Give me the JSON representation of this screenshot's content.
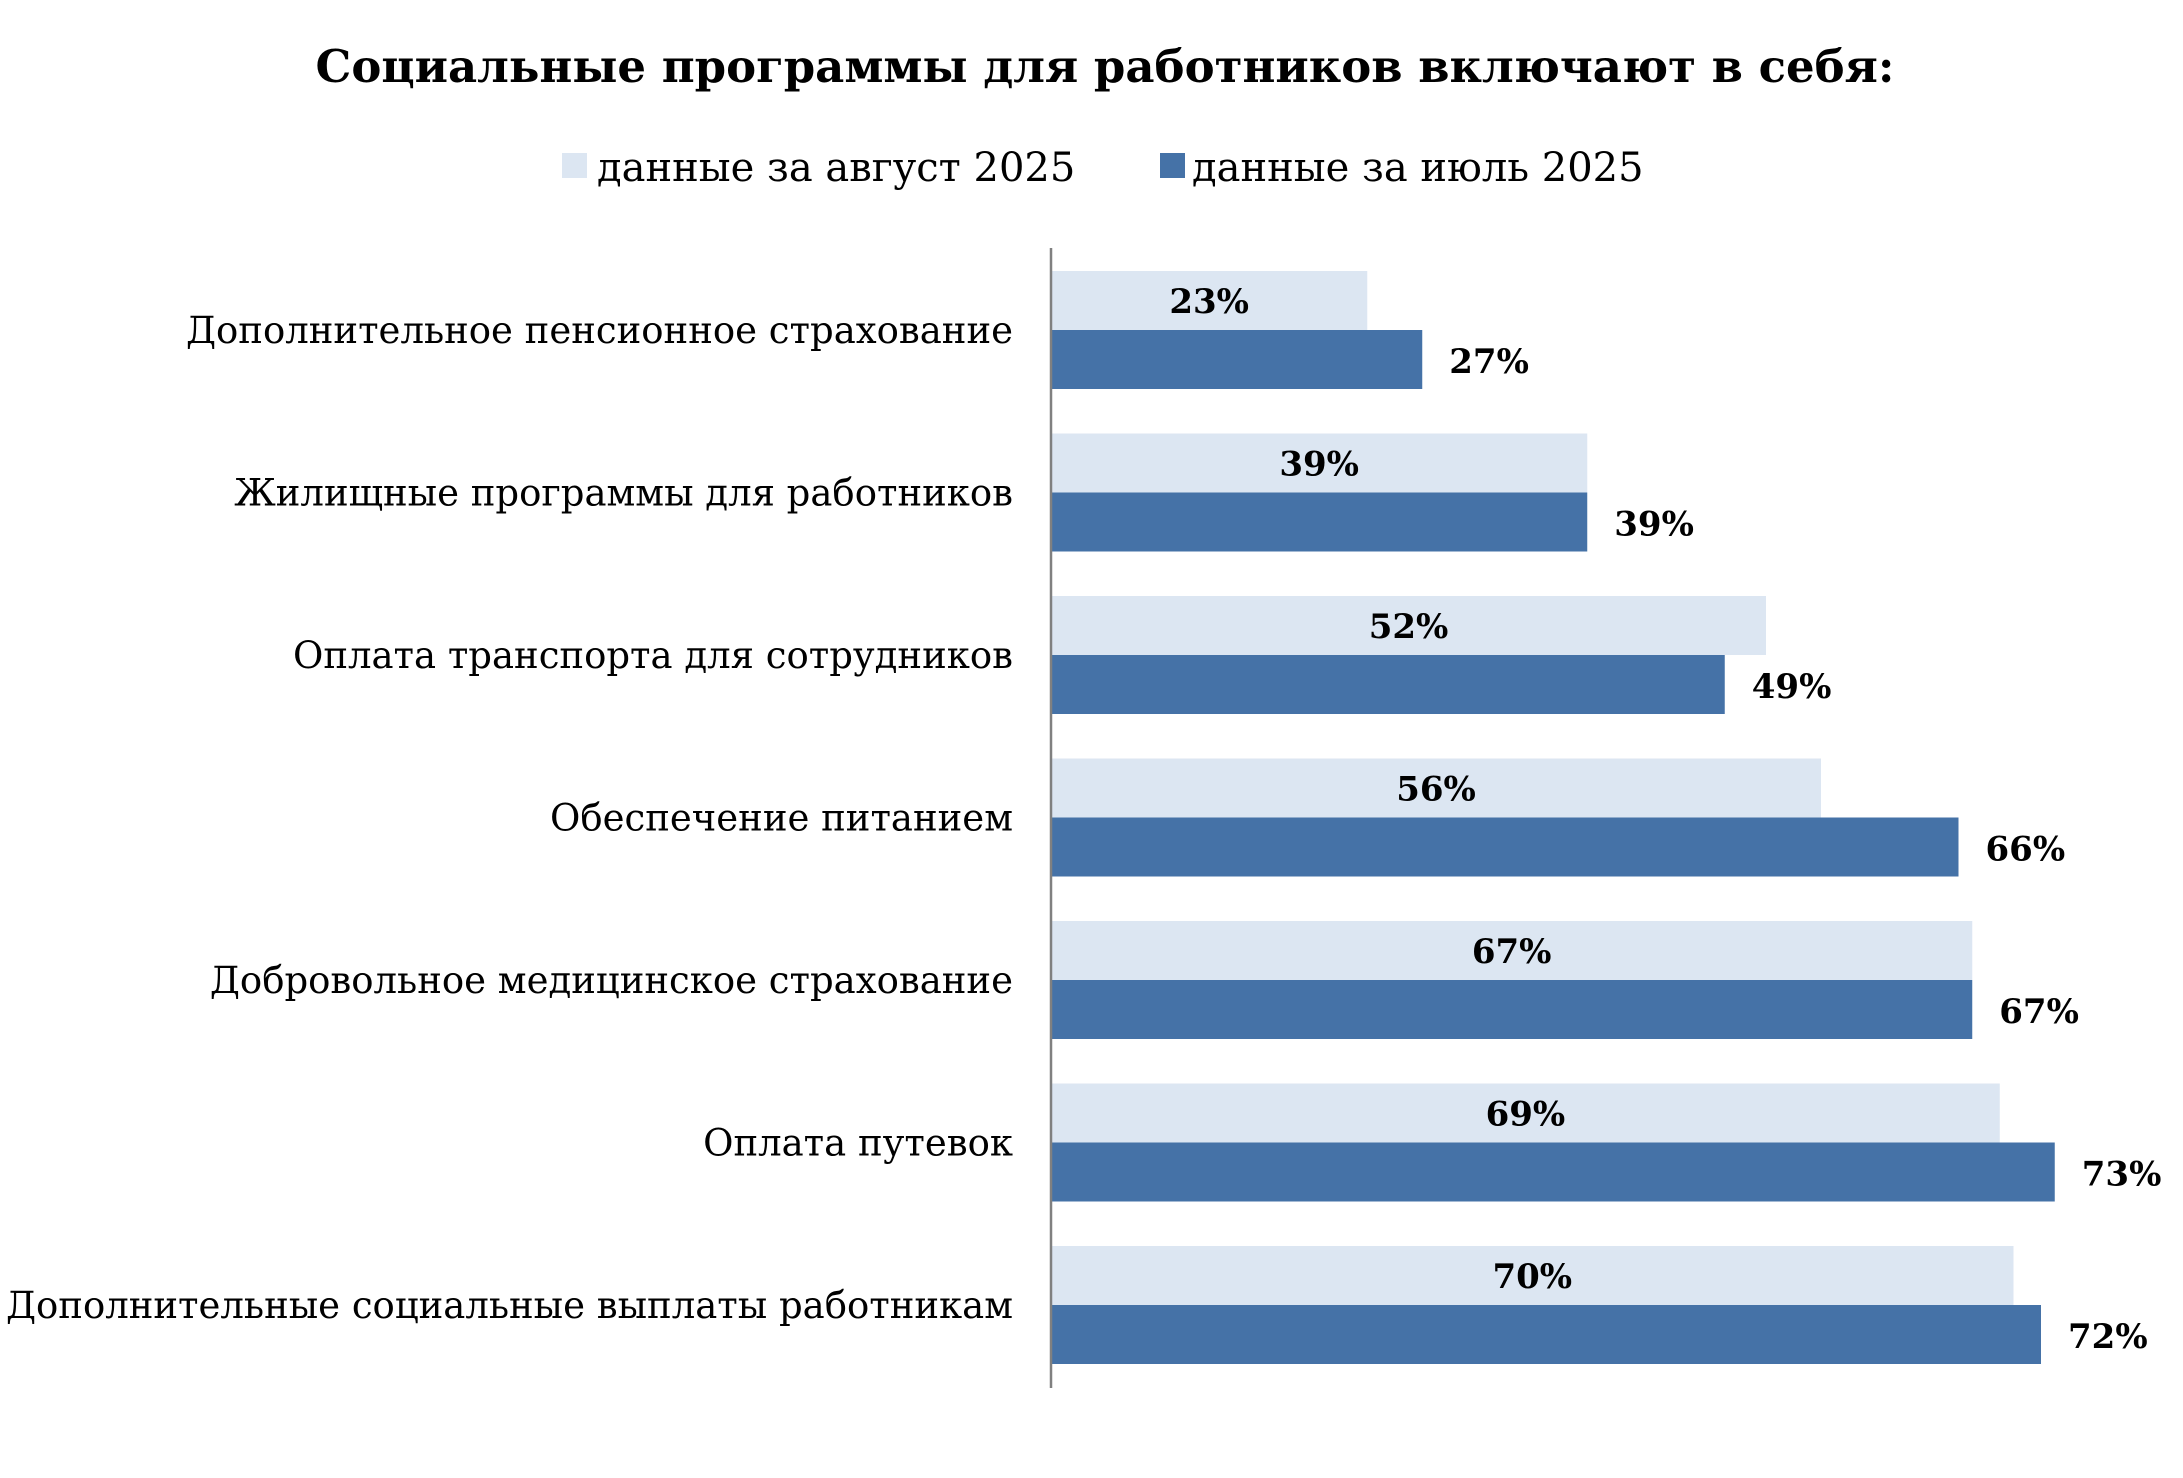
{
  "chart_data": {
    "type": "bar",
    "orientation": "horizontal",
    "title": "Социальные программы для работников включают в себя:",
    "xlabel": "",
    "ylabel": "",
    "xlim": [
      0,
      100
    ],
    "grid": false,
    "legend_position": "top",
    "categories": [
      "Дополнительное пенсионное страхование",
      "Жилищные программы для работников",
      "Оплата транспорта для сотрудников",
      "Обеспечение питанием",
      "Добровольное медицинское страхование",
      "Оплата путевок",
      "Дополнительные социальные выплаты работникам"
    ],
    "series": [
      {
        "name": "данные за август 2025",
        "color": "#dce6f2",
        "values": [
          23,
          39,
          52,
          56,
          67,
          69,
          70
        ],
        "labels": [
          "23%",
          "39%",
          "52%",
          "56%",
          "67%",
          "69%",
          "70%"
        ]
      },
      {
        "name": "данные за июль 2025",
        "color": "#4572a7",
        "values": [
          27,
          39,
          49,
          66,
          67,
          73,
          72
        ],
        "labels": [
          "27%",
          "39%",
          "49%",
          "66%",
          "67%",
          "73%",
          "72%"
        ]
      }
    ]
  },
  "colors": {
    "axis": "#808080",
    "text": "#000000"
  }
}
